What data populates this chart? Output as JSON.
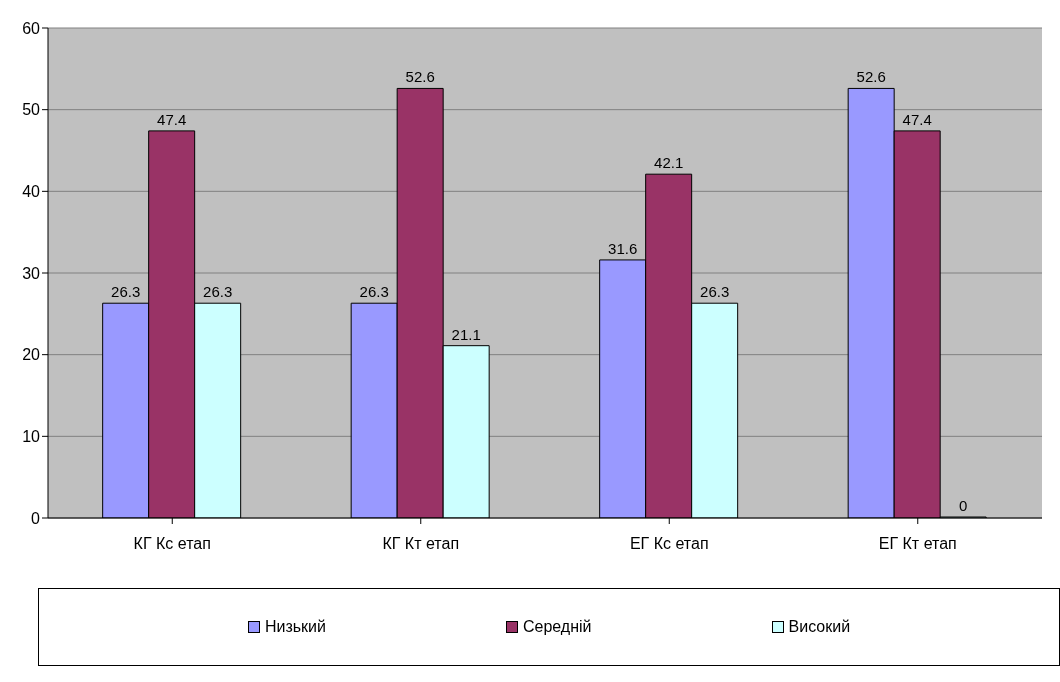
{
  "chart_data": {
    "type": "bar",
    "categories": [
      "КГ Кс етап",
      "КГ Кт етап",
      "ЕГ Кс етап",
      "ЕГ Кт етап"
    ],
    "series": [
      {
        "name": "Низький",
        "color": "#9999ff",
        "values": [
          26.3,
          26.3,
          31.6,
          52.6
        ]
      },
      {
        "name": "Середній",
        "color": "#993366",
        "values": [
          47.4,
          52.6,
          42.1,
          47.4
        ]
      },
      {
        "name": "Високий",
        "color": "#ccffff",
        "values": [
          26.3,
          21.1,
          26.3,
          0
        ]
      }
    ],
    "ylim": [
      0,
      60
    ],
    "yticks": [
      0,
      10,
      20,
      30,
      40,
      50,
      60
    ],
    "grid": "y",
    "legend": "bottom",
    "data_labels": true
  }
}
